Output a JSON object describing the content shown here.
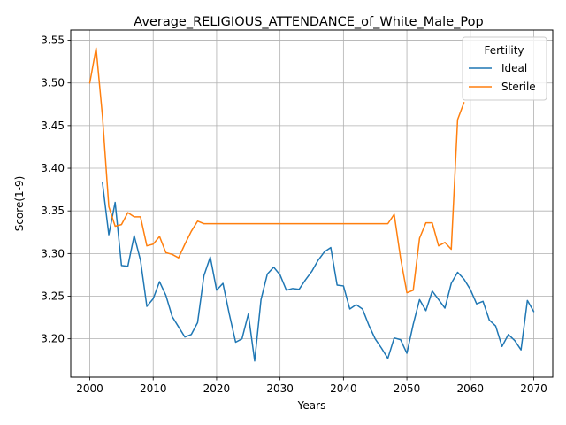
{
  "chart_data": {
    "type": "line",
    "title": "Average_RELIGIOUS_ATTENDANCE_of_White_Male_Pop",
    "xlabel": "Years",
    "ylabel": "Score(1-9)",
    "xlim": [
      1997,
      2073
    ],
    "ylim": [
      3.155,
      3.562
    ],
    "xticks": [
      2000,
      2010,
      2020,
      2030,
      2040,
      2050,
      2060,
      2070
    ],
    "yticks": [
      3.2,
      3.25,
      3.3,
      3.35,
      3.4,
      3.45,
      3.5,
      3.55
    ],
    "xtick_labels": [
      "2000",
      "2010",
      "2020",
      "2030",
      "2040",
      "2050",
      "2060",
      "2070"
    ],
    "ytick_labels": [
      "3.20",
      "3.25",
      "3.30",
      "3.35",
      "3.40",
      "3.45",
      "3.50",
      "3.55"
    ],
    "grid": true,
    "legend": {
      "title": "Fertility",
      "position": "top-right"
    },
    "series": [
      {
        "name": "Ideal",
        "color": "#1f77b4",
        "x": [
          2002,
          2003,
          2004,
          2005,
          2006,
          2007,
          2008,
          2009,
          2010,
          2011,
          2012,
          2013,
          2014,
          2015,
          2016,
          2017,
          2018,
          2019,
          2020,
          2021,
          2022,
          2023,
          2024,
          2025,
          2026,
          2027,
          2028,
          2029,
          2030,
          2031,
          2032,
          2033,
          2034,
          2035,
          2036,
          2037,
          2038,
          2039,
          2040,
          2041,
          2042,
          2043,
          2044,
          2045,
          2046,
          2047,
          2048,
          2049,
          2050,
          2051,
          2052,
          2053,
          2054,
          2055,
          2056,
          2057,
          2058,
          2059,
          2060,
          2061,
          2062,
          2063,
          2064,
          2065,
          2066,
          2067,
          2068,
          2069,
          2070
        ],
        "y": [
          3.383,
          3.322,
          3.36,
          3.286,
          3.285,
          3.321,
          3.292,
          3.238,
          3.247,
          3.267,
          3.251,
          3.226,
          3.214,
          3.202,
          3.205,
          3.219,
          3.274,
          3.296,
          3.257,
          3.265,
          3.229,
          3.196,
          3.2,
          3.229,
          3.174,
          3.246,
          3.276,
          3.284,
          3.275,
          3.257,
          3.259,
          3.258,
          3.269,
          3.279,
          3.292,
          3.302,
          3.307,
          3.263,
          3.262,
          3.235,
          3.24,
          3.235,
          3.216,
          3.2,
          3.189,
          3.177,
          3.201,
          3.199,
          3.183,
          3.217,
          3.246,
          3.233,
          3.256,
          3.246,
          3.236,
          3.265,
          3.278,
          3.27,
          3.258,
          3.241,
          3.244,
          3.222,
          3.215,
          3.191,
          3.205,
          3.198,
          3.187,
          3.245,
          3.232
        ]
      },
      {
        "name": "Sterile",
        "color": "#ff7f0e",
        "x": [
          2000,
          2001,
          2002,
          2003,
          2004,
          2005,
          2006,
          2007,
          2008,
          2009,
          2010,
          2011,
          2012,
          2013,
          2014,
          2015,
          2016,
          2017,
          2018,
          2019,
          2020,
          2021,
          2022,
          2023,
          2024,
          2025,
          2026,
          2027,
          2028,
          2029,
          2030,
          2031,
          2032,
          2033,
          2034,
          2035,
          2036,
          2037,
          2038,
          2039,
          2040,
          2041,
          2042,
          2043,
          2044,
          2045,
          2046,
          2047,
          2048,
          2049,
          2050,
          2051,
          2052,
          2053,
          2054,
          2055,
          2056,
          2057,
          2058,
          2059
        ],
        "y": [
          3.5,
          3.541,
          3.461,
          3.355,
          3.332,
          3.334,
          3.348,
          3.343,
          3.343,
          3.309,
          3.311,
          3.32,
          3.301,
          3.299,
          3.295,
          3.311,
          3.326,
          3.338,
          3.335,
          3.335,
          3.335,
          3.335,
          3.335,
          3.335,
          3.335,
          3.335,
          3.335,
          3.335,
          3.335,
          3.335,
          3.335,
          3.335,
          3.335,
          3.335,
          3.335,
          3.335,
          3.335,
          3.335,
          3.335,
          3.335,
          3.335,
          3.335,
          3.335,
          3.335,
          3.335,
          3.335,
          3.335,
          3.335,
          3.346,
          3.295,
          3.254,
          3.257,
          3.318,
          3.336,
          3.336,
          3.309,
          3.313,
          3.305,
          3.457,
          3.477
        ]
      }
    ]
  }
}
